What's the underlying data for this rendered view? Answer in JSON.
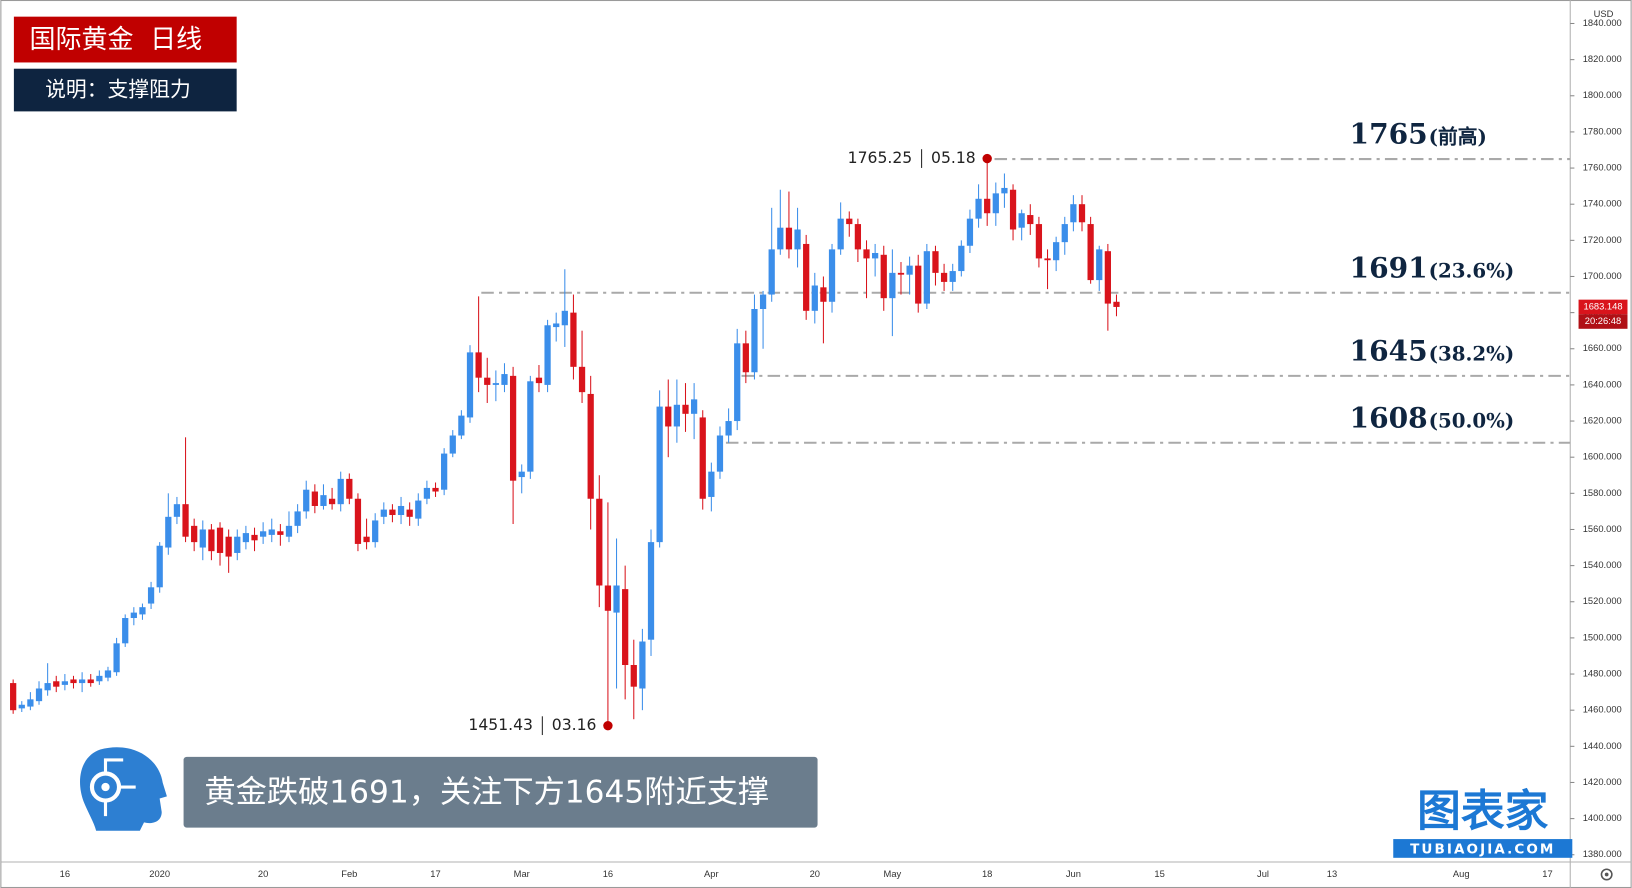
{
  "header": {
    "title": "国际黄金  日线",
    "subtitle": "说明：支撑阻力"
  },
  "chart_data": {
    "type": "candlestick",
    "currency": "USD",
    "categories": [
      null,
      null,
      null,
      null,
      null,
      null,
      "16",
      null,
      null,
      null,
      null,
      null,
      null,
      null,
      null,
      null,
      null,
      "2020",
      null,
      null,
      null,
      null,
      null,
      null,
      null,
      null,
      null,
      null,
      null,
      "20",
      null,
      null,
      null,
      null,
      null,
      null,
      null,
      null,
      null,
      "Feb",
      null,
      null,
      null,
      null,
      null,
      null,
      null,
      null,
      null,
      "17",
      null,
      null,
      null,
      null,
      null,
      null,
      null,
      null,
      null,
      "Mar",
      null,
      null,
      null,
      null,
      null,
      null,
      null,
      null,
      null,
      "16",
      null,
      null,
      null,
      null,
      null,
      null,
      null,
      null,
      null,
      null,
      null,
      "Apr",
      null,
      null,
      null,
      null,
      null,
      null,
      null,
      null,
      null,
      null,
      null,
      "20",
      null,
      null,
      null,
      null,
      null,
      null,
      null,
      null,
      "May",
      null,
      null,
      null,
      null,
      null,
      null,
      null,
      null,
      null,
      null,
      "18",
      null,
      null,
      null,
      null,
      null,
      null,
      null,
      null,
      null,
      "Jun",
      null,
      null,
      null,
      null,
      null,
      null,
      null,
      null,
      null,
      "15",
      null,
      null,
      null,
      null,
      null,
      null,
      null,
      null,
      null,
      null,
      null,
      "Jul",
      null,
      null,
      null,
      null,
      null,
      null,
      null,
      "13",
      null,
      null,
      null,
      null,
      null,
      null,
      null,
      null,
      null,
      null,
      null,
      null,
      null,
      null,
      "Aug",
      null,
      null,
      null,
      null,
      null,
      null,
      null,
      null,
      null,
      "17",
      null,
      null
    ],
    "open": [
      1475,
      1461,
      1462,
      1465,
      1471,
      1476,
      1474,
      1477,
      1475,
      1477,
      1476,
      1478,
      1481,
      1497,
      1511,
      1513,
      1519,
      1528,
      1550,
      1567,
      1574,
      1562,
      1550,
      1560,
      1561,
      1556,
      1547,
      1553,
      1557,
      1556,
      1557,
      1559,
      1556,
      1562,
      1570,
      1581,
      1573,
      1577,
      1574,
      1588,
      1577,
      1556,
      1553,
      1567,
      1571,
      1568,
      1571,
      1566,
      1577,
      1583,
      1582,
      1602,
      1612,
      1622,
      1658,
      1644,
      1640,
      1640,
      1645,
      1589,
      1592,
      1644,
      1640,
      1672,
      1673,
      1680,
      1650,
      1635,
      1577,
      1529,
      1514,
      1527,
      1485,
      1472,
      1499,
      1553,
      1628,
      1617,
      1629,
      1624,
      1622,
      1578,
      1592,
      1612,
      1620,
      1663,
      1647,
      1682,
      1690,
      1715,
      1727,
      1715,
      1718,
      1681,
      1694,
      1686,
      1715,
      1732,
      1729,
      1715,
      1710,
      1712,
      1688,
      1702,
      1701,
      1706,
      1685,
      1714,
      1702,
      1697,
      1703,
      1717,
      1732,
      1743,
      1735,
      1746,
      1748,
      1727,
      1734,
      1729,
      1710,
      1709,
      1719,
      1730,
      1740,
      1729,
      1698,
      1714,
      1686,
      null,
      null,
      null,
      null,
      null,
      null,
      null,
      null,
      null,
      null,
      null,
      null,
      null,
      null,
      null,
      null,
      null,
      null,
      null,
      null,
      null,
      null,
      null,
      null,
      null,
      null,
      null,
      null,
      null,
      null,
      null,
      null,
      null,
      null,
      null,
      null,
      null,
      null,
      null,
      null,
      null,
      null,
      null,
      null,
      null,
      null,
      null,
      null,
      null,
      null,
      null,
      null
    ],
    "high": [
      1477,
      1465,
      1470,
      1476,
      1486,
      1479,
      1480,
      1479,
      1481,
      1480,
      1482,
      1484,
      1500,
      1513,
      1517,
      1519,
      1531,
      1553,
      1580,
      1578,
      1611,
      1566,
      1565,
      1563,
      1564,
      1560,
      1560,
      1562,
      1561,
      1564,
      1566,
      1563,
      1570,
      1574,
      1587,
      1585,
      1585,
      1583,
      1592,
      1591,
      1580,
      1566,
      1569,
      1575,
      1574,
      1578,
      1575,
      1580,
      1587,
      1586,
      1605,
      1615,
      1626,
      1662,
      1689,
      1655,
      1648,
      1652,
      1650,
      1596,
      1645,
      1651,
      1676,
      1680,
      1704,
      1690,
      1670,
      1645,
      1590,
      1575,
      1555,
      1540,
      1499,
      1505,
      1560,
      1637,
      1643,
      1643,
      1641,
      1641,
      1626,
      1597,
      1617,
      1627,
      1671,
      1670,
      1690,
      1692,
      1738,
      1748,
      1747,
      1738,
      1723,
      1702,
      1700,
      1718,
      1741,
      1736,
      1732,
      1720,
      1718,
      1717,
      1715,
      1708,
      1711,
      1712,
      1718,
      1717,
      1707,
      1707,
      1720,
      1737,
      1751,
      1765.25,
      1752,
      1757,
      1751,
      1737,
      1740,
      1733,
      1715,
      1722,
      1733,
      1745,
      1745,
      1733,
      1717,
      1718,
      1690,
      null,
      null,
      null,
      null,
      null,
      null,
      null,
      null,
      null,
      null,
      null,
      null,
      null,
      null,
      null,
      null,
      null,
      null,
      null,
      null,
      null,
      null,
      null,
      null,
      null,
      null,
      null,
      null,
      null,
      null,
      null,
      null,
      null,
      null,
      null,
      null,
      null,
      null,
      null,
      null,
      null,
      null,
      null,
      null,
      null,
      null,
      null,
      null,
      null,
      null,
      null,
      null
    ],
    "low": [
      1458,
      1459,
      1460,
      1463,
      1468,
      1470,
      1471,
      1472,
      1470,
      1473,
      1474,
      1476,
      1479,
      1495,
      1507,
      1510,
      1516,
      1525,
      1546,
      1563,
      1553,
      1548,
      1543,
      1543,
      1540,
      1536,
      1543,
      1549,
      1548,
      1552,
      1553,
      1551,
      1553,
      1558,
      1566,
      1569,
      1571,
      1571,
      1570,
      1574,
      1548,
      1549,
      1550,
      1563,
      1564,
      1563,
      1562,
      1562,
      1574,
      1578,
      1579,
      1600,
      1610,
      1619,
      1636,
      1630,
      1631,
      1636,
      1563,
      1580,
      1588,
      1636,
      1636,
      1664,
      1661,
      1643,
      1630,
      1560,
      1517,
      1451.43,
      1472,
      1466,
      1455,
      1460,
      1490,
      1550,
      1600,
      1608,
      1614,
      1610,
      1571,
      1570,
      1588,
      1608,
      1615,
      1641,
      1643,
      1660,
      1686,
      1712,
      1710,
      1705,
      1676,
      1674,
      1663,
      1680,
      1712,
      1722,
      1708,
      1688,
      1700,
      1681,
      1667,
      1690,
      1690,
      1680,
      1682,
      1695,
      1692,
      1692,
      1700,
      1713,
      1727,
      1728,
      1728,
      1738,
      1720,
      1720,
      1723,
      1705,
      1693,
      1703,
      1712,
      1725,
      1725,
      1696,
      1692,
      1670,
      1678,
      null,
      null,
      null,
      null,
      null,
      null,
      null,
      null,
      null,
      null,
      null,
      null,
      null,
      null,
      null,
      null,
      null,
      null,
      null,
      null,
      null,
      null,
      null,
      null,
      null,
      null,
      null,
      null,
      null,
      null,
      null,
      null,
      null,
      null,
      null,
      null,
      null,
      null,
      null,
      null,
      null,
      null,
      null,
      null,
      null,
      null,
      null,
      null,
      null,
      null,
      null,
      null
    ],
    "close": [
      1460,
      1463,
      1466,
      1472,
      1475,
      1473,
      1476,
      1475,
      1477,
      1475,
      1479,
      1482,
      1497,
      1511,
      1514,
      1517,
      1528,
      1551,
      1567,
      1574,
      1556,
      1553,
      1560,
      1548,
      1547,
      1545,
      1556,
      1558,
      1554,
      1559,
      1560,
      1557,
      1562,
      1570,
      1582,
      1573,
      1579,
      1574,
      1588,
      1577,
      1552,
      1553,
      1565,
      1571,
      1568,
      1573,
      1567,
      1576,
      1583,
      1581,
      1602,
      1612,
      1623,
      1658,
      1644,
      1640,
      1641,
      1646,
      1587,
      1592,
      1642,
      1641,
      1673,
      1674,
      1681,
      1650,
      1636,
      1577,
      1529,
      1515,
      1529,
      1485,
      1473,
      1498,
      1553,
      1628,
      1617,
      1629,
      1624,
      1632,
      1577,
      1592,
      1612,
      1620,
      1663,
      1647,
      1682,
      1690,
      1715,
      1727,
      1715,
      1726,
      1681,
      1695,
      1686,
      1715,
      1732,
      1729,
      1715,
      1710,
      1713,
      1688,
      1702,
      1701,
      1706,
      1685,
      1714,
      1702,
      1697,
      1703,
      1717,
      1732,
      1743,
      1735,
      1746,
      1749,
      1726,
      1735,
      1729,
      1710,
      1709,
      1719,
      1729,
      1740,
      1730,
      1698,
      1715,
      1685,
      1683.148,
      null,
      null,
      null,
      null,
      null,
      null,
      null,
      null,
      null,
      null,
      null,
      null,
      null,
      null,
      null,
      null,
      null,
      null,
      null,
      null,
      null,
      null,
      null,
      null,
      null,
      null,
      null,
      null,
      null,
      null,
      null,
      null,
      null,
      null,
      null,
      null,
      null,
      null,
      null,
      null,
      null,
      null,
      null,
      null,
      null,
      null,
      null,
      null,
      null,
      null,
      null,
      null
    ],
    "up_color": "#3b8eea",
    "down_color": "#d9141c",
    "level_color": "#a9a9a9",
    "marker_color": "#c00000",
    "ylim": [
      1376,
      1853
    ],
    "grid": false,
    "yticks": [
      {
        "value": 1380,
        "label": "1380.000"
      },
      {
        "value": 1400,
        "label": "1400.000"
      },
      {
        "value": 1420,
        "label": "1420.000"
      },
      {
        "value": 1440,
        "label": "1440.000"
      },
      {
        "value": 1460,
        "label": "1460.000"
      },
      {
        "value": 1480,
        "label": "1480.000"
      },
      {
        "value": 1500,
        "label": "1500.000"
      },
      {
        "value": 1520,
        "label": "1520.000"
      },
      {
        "value": 1540,
        "label": "1540.000"
      },
      {
        "value": 1560,
        "label": "1560.000"
      },
      {
        "value": 1580,
        "label": "1580.000"
      },
      {
        "value": 1600,
        "label": "1600.000"
      },
      {
        "value": 1620,
        "label": "1620.000"
      },
      {
        "value": 1640,
        "label": "1640.000"
      },
      {
        "value": 1660,
        "label": "1660.000"
      },
      {
        "value": 1680,
        "label": "1680.000"
      },
      {
        "value": 1700,
        "label": "1700.000"
      },
      {
        "value": 1720,
        "label": "1720.000"
      },
      {
        "value": 1740,
        "label": "1740.000"
      },
      {
        "value": 1760,
        "label": "1760.000"
      },
      {
        "value": 1780,
        "label": "1780.000"
      },
      {
        "value": 1800,
        "label": "1800.000"
      },
      {
        "value": 1820,
        "label": "1820.000"
      },
      {
        "value": 1840,
        "label": "1840.000"
      }
    ],
    "levels": [
      {
        "value": 1765,
        "note": "(前高)"
      },
      {
        "value": 1691,
        "note": "(23.6%)"
      },
      {
        "value": 1645,
        "note": "(38.2%)"
      },
      {
        "value": 1608,
        "note": "(50.0%)"
      }
    ],
    "extremes": [
      {
        "value": 1765.25,
        "date": "05.18"
      },
      {
        "value": 1451.43,
        "date": "03.16"
      }
    ],
    "last_price": {
      "value": 1683.148,
      "time": "20:26:48"
    }
  },
  "caption": "黄金跌破1691，关注下方1645附近支撑",
  "brand": {
    "name": "图表家",
    "url": "TUBIAOJIA.COM"
  }
}
